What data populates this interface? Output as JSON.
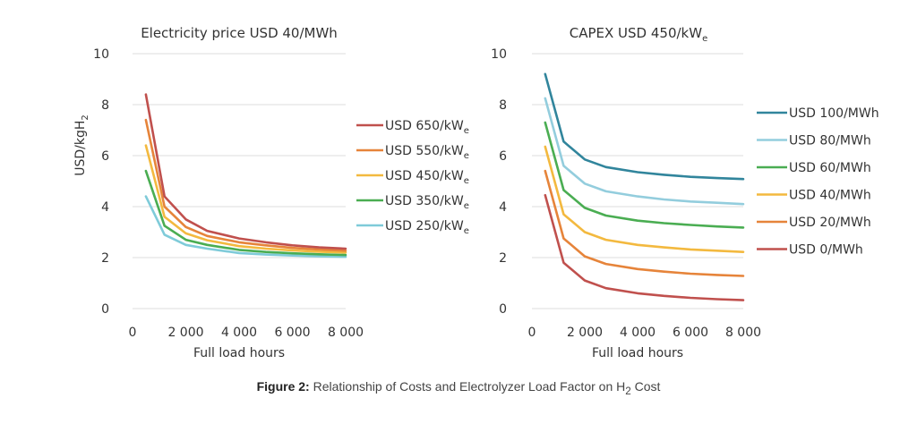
{
  "caption": {
    "label": "Figure 2:",
    "text_before": " Relationship of Costs and Electrolyzer Load Factor on H",
    "subscript": "2",
    "text_after": " Cost"
  },
  "chart_data": [
    {
      "type": "line",
      "title": "Electricity price USD 40/MWh",
      "ylabel": "USD/kgH2",
      "ylabel_main": "USD/kgH",
      "ylabel_sub": "2",
      "xlabel": "Full load hours",
      "xlim": [
        0,
        8000
      ],
      "ylim": [
        0,
        10
      ],
      "xticks": [
        0,
        2000,
        4000,
        6000,
        8000
      ],
      "xtick_labels": [
        "0",
        "2 000",
        "4 000",
        "6 000",
        "8 000"
      ],
      "yticks": [
        0,
        2,
        4,
        6,
        8,
        10
      ],
      "ytick_labels": [
        "0",
        "2",
        "4",
        "6",
        "8",
        "10"
      ],
      "grid": true,
      "legend_position": "right",
      "x": [
        500,
        1200,
        2000,
        2800,
        4000,
        5000,
        6000,
        7000,
        8000
      ],
      "series": [
        {
          "name": "USD 650/kW",
          "name_main": "USD 650/kW",
          "name_sub": "e",
          "color": "#c0504d",
          "values": [
            8.4,
            4.4,
            3.5,
            3.05,
            2.75,
            2.6,
            2.48,
            2.4,
            2.35
          ]
        },
        {
          "name": "USD 550/kW",
          "name_main": "USD 550/kW",
          "name_sub": "e",
          "color": "#e6843a",
          "values": [
            7.4,
            4.0,
            3.2,
            2.85,
            2.6,
            2.48,
            2.38,
            2.32,
            2.27
          ]
        },
        {
          "name": "USD 450/kW",
          "name_main": "USD 450/kW",
          "name_sub": "e",
          "color": "#f3b93f",
          "values": [
            6.4,
            3.6,
            2.95,
            2.68,
            2.45,
            2.35,
            2.28,
            2.23,
            2.2
          ]
        },
        {
          "name": "USD 350/kW",
          "name_main": "USD 350/kW",
          "name_sub": "e",
          "color": "#4aad52",
          "values": [
            5.4,
            3.25,
            2.7,
            2.5,
            2.3,
            2.22,
            2.17,
            2.13,
            2.1
          ]
        },
        {
          "name": "USD 250/kW",
          "name_main": "USD 250/kW",
          "name_sub": "e",
          "color": "#7fcbd9",
          "values": [
            4.4,
            2.9,
            2.5,
            2.35,
            2.18,
            2.12,
            2.08,
            2.05,
            2.03
          ]
        }
      ]
    },
    {
      "type": "line",
      "title": "CAPEX USD 450/kWe",
      "title_main": "CAPEX USD 450/kW",
      "title_sub": "e",
      "xlabel": "Full load hours",
      "xlim": [
        0,
        8000
      ],
      "ylim": [
        0,
        10
      ],
      "xticks": [
        0,
        2000,
        4000,
        6000,
        8000
      ],
      "xtick_labels": [
        "0",
        "2 000",
        "4 000",
        "6 000",
        "8 000"
      ],
      "yticks": [
        0,
        2,
        4,
        6,
        8,
        10
      ],
      "ytick_labels": [
        "0",
        "2",
        "4",
        "6",
        "8",
        "10"
      ],
      "grid": true,
      "legend_position": "right",
      "x": [
        500,
        1200,
        2000,
        2800,
        4000,
        5000,
        6000,
        7000,
        8000
      ],
      "series": [
        {
          "name": "USD 100/MWh",
          "color": "#31859c",
          "values": [
            9.2,
            6.55,
            5.85,
            5.55,
            5.35,
            5.25,
            5.17,
            5.12,
            5.08
          ]
        },
        {
          "name": "USD 80/MWh",
          "color": "#93cddd",
          "values": [
            8.25,
            5.6,
            4.9,
            4.6,
            4.4,
            4.28,
            4.2,
            4.15,
            4.1
          ]
        },
        {
          "name": "USD 60/MWh",
          "color": "#4aad52",
          "values": [
            7.3,
            4.65,
            3.95,
            3.65,
            3.45,
            3.35,
            3.28,
            3.22,
            3.18
          ]
        },
        {
          "name": "USD 40/MWh",
          "color": "#f3b93f",
          "values": [
            6.35,
            3.7,
            3.0,
            2.7,
            2.5,
            2.4,
            2.32,
            2.27,
            2.22
          ]
        },
        {
          "name": "USD 20/MWh",
          "color": "#e6843a",
          "values": [
            5.4,
            2.75,
            2.05,
            1.75,
            1.55,
            1.45,
            1.37,
            1.32,
            1.28
          ]
        },
        {
          "name": "USD 0/MWh",
          "color": "#c0504d",
          "values": [
            4.45,
            1.8,
            1.1,
            0.8,
            0.6,
            0.5,
            0.42,
            0.37,
            0.33
          ]
        }
      ]
    }
  ]
}
